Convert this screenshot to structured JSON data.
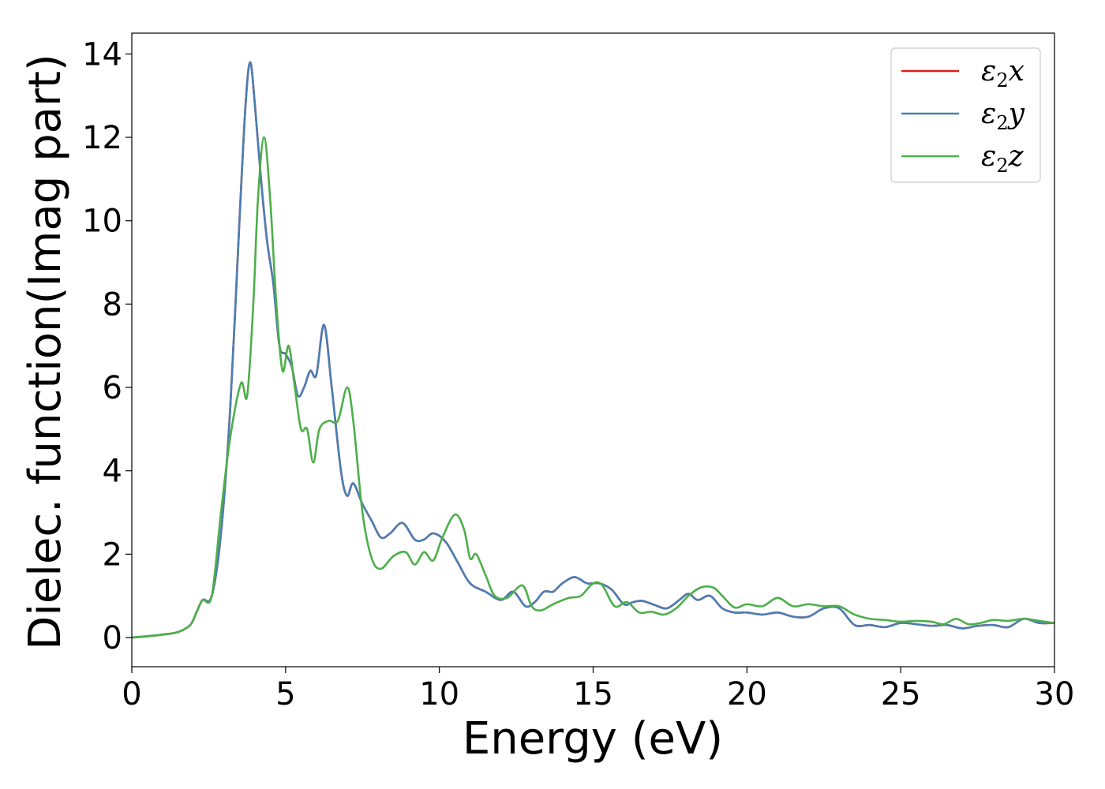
{
  "chart_data": {
    "type": "line",
    "title": "",
    "xlabel": "Energy (eV)",
    "ylabel": "Dielec. function(Imag part)",
    "xlim": [
      0,
      30
    ],
    "ylim": [
      -0.7,
      14.5
    ],
    "xticks": [
      0,
      5,
      10,
      15,
      20,
      25,
      30
    ],
    "yticks": [
      0,
      2,
      4,
      6,
      8,
      10,
      12,
      14
    ],
    "grid": false,
    "legend_position": "top-right",
    "series": [
      {
        "name": "ε2x",
        "legend_base": "ε",
        "legend_sub": "2",
        "legend_var": "x",
        "color": "#e41a1c",
        "x": [
          0,
          0.5,
          1,
          1.5,
          1.9,
          2.1,
          2.3,
          2.6,
          2.9,
          3.2,
          3.5,
          3.7,
          3.85,
          4.0,
          4.2,
          4.4,
          4.6,
          4.8,
          5.0,
          5.2,
          5.4,
          5.6,
          5.8,
          6.0,
          6.25,
          6.5,
          6.8,
          7.0,
          7.2,
          7.5,
          7.8,
          8.1,
          8.4,
          8.8,
          9.2,
          9.5,
          9.8,
          10.2,
          10.6,
          11.0,
          11.5,
          12.0,
          12.4,
          12.8,
          13.1,
          13.4,
          13.7,
          14.0,
          14.4,
          14.8,
          15.2,
          15.6,
          16.0,
          16.3,
          16.6,
          17.0,
          17.4,
          17.8,
          18.1,
          18.4,
          18.8,
          19.2,
          19.6,
          20.0,
          20.5,
          21.0,
          21.5,
          22.0,
          22.5,
          23.0,
          23.5,
          24.0,
          24.5,
          25.0,
          25.5,
          26.0,
          26.5,
          27.0,
          27.5,
          28.0,
          28.5,
          29.0,
          29.5,
          30.0
        ],
        "y": [
          0.0,
          0.03,
          0.07,
          0.13,
          0.3,
          0.6,
          0.9,
          1.0,
          2.5,
          5.5,
          10.0,
          12.8,
          13.8,
          12.8,
          11.0,
          9.5,
          8.5,
          7.0,
          6.8,
          6.5,
          5.8,
          6.0,
          6.4,
          6.3,
          7.5,
          6.0,
          4.0,
          3.4,
          3.7,
          3.2,
          2.8,
          2.4,
          2.5,
          2.75,
          2.35,
          2.35,
          2.5,
          2.3,
          1.8,
          1.3,
          1.1,
          0.9,
          1.1,
          0.75,
          0.85,
          1.1,
          1.1,
          1.3,
          1.45,
          1.3,
          1.3,
          1.15,
          0.8,
          0.85,
          0.88,
          0.78,
          0.7,
          0.9,
          1.05,
          0.9,
          1.0,
          0.7,
          0.6,
          0.6,
          0.55,
          0.6,
          0.5,
          0.5,
          0.7,
          0.7,
          0.3,
          0.3,
          0.25,
          0.35,
          0.32,
          0.28,
          0.3,
          0.22,
          0.28,
          0.3,
          0.25,
          0.45,
          0.35,
          0.35
        ]
      },
      {
        "name": "ε2y",
        "legend_base": "ε",
        "legend_sub": "2",
        "legend_var": "y",
        "color": "#4a7fb5",
        "x": [
          0,
          0.5,
          1,
          1.5,
          1.9,
          2.1,
          2.3,
          2.6,
          2.9,
          3.2,
          3.5,
          3.7,
          3.85,
          4.0,
          4.2,
          4.4,
          4.6,
          4.8,
          5.0,
          5.2,
          5.4,
          5.6,
          5.8,
          6.0,
          6.25,
          6.5,
          6.8,
          7.0,
          7.2,
          7.5,
          7.8,
          8.1,
          8.4,
          8.8,
          9.2,
          9.5,
          9.8,
          10.2,
          10.6,
          11.0,
          11.5,
          12.0,
          12.4,
          12.8,
          13.1,
          13.4,
          13.7,
          14.0,
          14.4,
          14.8,
          15.2,
          15.6,
          16.0,
          16.3,
          16.6,
          17.0,
          17.4,
          17.8,
          18.1,
          18.4,
          18.8,
          19.2,
          19.6,
          20.0,
          20.5,
          21.0,
          21.5,
          22.0,
          22.5,
          23.0,
          23.5,
          24.0,
          24.5,
          25.0,
          25.5,
          26.0,
          26.5,
          27.0,
          27.5,
          28.0,
          28.5,
          29.0,
          29.5,
          30.0
        ],
        "y": [
          0.0,
          0.03,
          0.07,
          0.13,
          0.3,
          0.6,
          0.9,
          1.0,
          2.5,
          5.5,
          10.0,
          12.8,
          13.8,
          12.8,
          11.0,
          9.5,
          8.5,
          7.0,
          6.8,
          6.5,
          5.8,
          6.0,
          6.4,
          6.3,
          7.5,
          6.0,
          4.0,
          3.4,
          3.7,
          3.2,
          2.8,
          2.4,
          2.5,
          2.75,
          2.35,
          2.35,
          2.5,
          2.3,
          1.8,
          1.3,
          1.1,
          0.9,
          1.1,
          0.75,
          0.85,
          1.1,
          1.1,
          1.3,
          1.45,
          1.3,
          1.3,
          1.15,
          0.8,
          0.85,
          0.88,
          0.78,
          0.7,
          0.9,
          1.05,
          0.9,
          1.0,
          0.7,
          0.6,
          0.6,
          0.55,
          0.6,
          0.5,
          0.5,
          0.7,
          0.7,
          0.3,
          0.3,
          0.25,
          0.35,
          0.32,
          0.28,
          0.3,
          0.22,
          0.28,
          0.3,
          0.25,
          0.45,
          0.35,
          0.35
        ]
      },
      {
        "name": "ε2z",
        "legend_base": "ε",
        "legend_sub": "2",
        "legend_var": "z",
        "color": "#4daf4a",
        "x": [
          0,
          0.5,
          1,
          1.5,
          1.9,
          2.1,
          2.3,
          2.6,
          2.9,
          3.2,
          3.55,
          3.75,
          3.95,
          4.1,
          4.3,
          4.5,
          4.7,
          4.9,
          5.1,
          5.3,
          5.5,
          5.7,
          5.9,
          6.1,
          6.4,
          6.7,
          7.0,
          7.2,
          7.5,
          7.8,
          8.1,
          8.5,
          8.9,
          9.2,
          9.5,
          9.8,
          10.1,
          10.5,
          10.8,
          11.0,
          11.2,
          11.5,
          11.8,
          12.2,
          12.7,
          13.0,
          13.3,
          13.7,
          14.2,
          14.6,
          15.0,
          15.3,
          15.7,
          16.1,
          16.5,
          16.9,
          17.3,
          17.7,
          18.1,
          18.5,
          18.9,
          19.2,
          19.6,
          20.0,
          20.5,
          21.0,
          21.5,
          22.0,
          22.5,
          23.0,
          23.5,
          24.0,
          24.5,
          25.0,
          25.5,
          26.0,
          26.4,
          26.8,
          27.2,
          27.6,
          28.0,
          28.5,
          29.0,
          29.5,
          30.0
        ],
        "y": [
          0.0,
          0.03,
          0.07,
          0.13,
          0.3,
          0.6,
          0.9,
          1.0,
          3.0,
          4.8,
          6.1,
          5.8,
          8.0,
          10.5,
          12.0,
          10.5,
          8.0,
          6.4,
          7.0,
          6.0,
          5.0,
          5.0,
          4.2,
          5.0,
          5.2,
          5.2,
          6.0,
          5.2,
          3.0,
          1.9,
          1.65,
          1.95,
          2.05,
          1.75,
          2.05,
          1.85,
          2.4,
          2.95,
          2.6,
          1.9,
          2.0,
          1.5,
          1.0,
          0.95,
          1.25,
          0.75,
          0.65,
          0.8,
          0.95,
          1.0,
          1.3,
          1.25,
          0.75,
          0.85,
          0.6,
          0.62,
          0.55,
          0.7,
          1.0,
          1.2,
          1.2,
          1.0,
          0.72,
          0.8,
          0.75,
          0.95,
          0.75,
          0.8,
          0.75,
          0.75,
          0.55,
          0.45,
          0.42,
          0.38,
          0.4,
          0.38,
          0.32,
          0.45,
          0.32,
          0.35,
          0.42,
          0.4,
          0.45,
          0.4,
          0.35
        ]
      }
    ]
  }
}
